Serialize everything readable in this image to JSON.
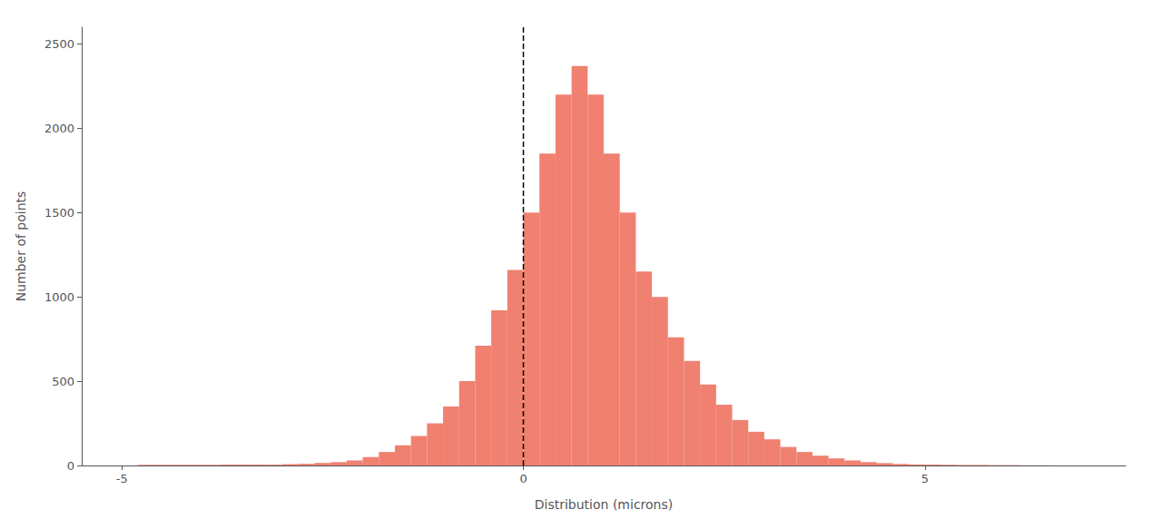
{
  "chart_data": {
    "type": "histogram",
    "xlabel": "Distribution (microns)",
    "ylabel": "Number of points",
    "bins": [
      -4.8,
      -4.6,
      -4.4,
      -4.2,
      -4.0,
      -3.8,
      -3.6,
      -3.4,
      -3.2,
      -3.0,
      -2.8,
      -2.6,
      -2.4,
      -2.2,
      -2.0,
      -1.8,
      -1.6,
      -1.4,
      -1.2,
      -1.0,
      -0.8,
      -0.6,
      -0.4,
      -0.2,
      0.0,
      0.2,
      0.4,
      0.6,
      0.8,
      1.0,
      1.2,
      1.4,
      1.6,
      1.8,
      2.0,
      2.2,
      2.4,
      2.6,
      2.8,
      3.0,
      3.2,
      3.4,
      3.6,
      3.8,
      4.0,
      4.2,
      4.4,
      4.6,
      4.8,
      5.0,
      5.2,
      5.4,
      5.6,
      5.8,
      6.0,
      6.2,
      6.4,
      6.6
    ],
    "values": [
      4,
      4,
      4,
      4,
      4,
      5,
      5,
      5,
      5,
      8,
      10,
      15,
      20,
      30,
      50,
      80,
      120,
      175,
      250,
      350,
      500,
      710,
      920,
      1160,
      1500,
      1850,
      2200,
      2370,
      2200,
      1850,
      1500,
      1150,
      1000,
      760,
      620,
      480,
      360,
      270,
      200,
      155,
      110,
      80,
      58,
      42,
      30,
      20,
      14,
      9,
      6,
      5,
      4,
      3,
      3,
      2,
      2,
      1,
      1
    ],
    "color": "#F08070",
    "reference_line": {
      "x": 0.0,
      "line_style": "dashed",
      "color": "#000000"
    },
    "xlim": [
      -5.5,
      7.5
    ],
    "xticks": [
      -5,
      0,
      5
    ],
    "ylim": [
      0,
      2600
    ],
    "yticks": [
      0,
      500,
      1000,
      1500,
      2000,
      2500
    ],
    "grid": false
  }
}
